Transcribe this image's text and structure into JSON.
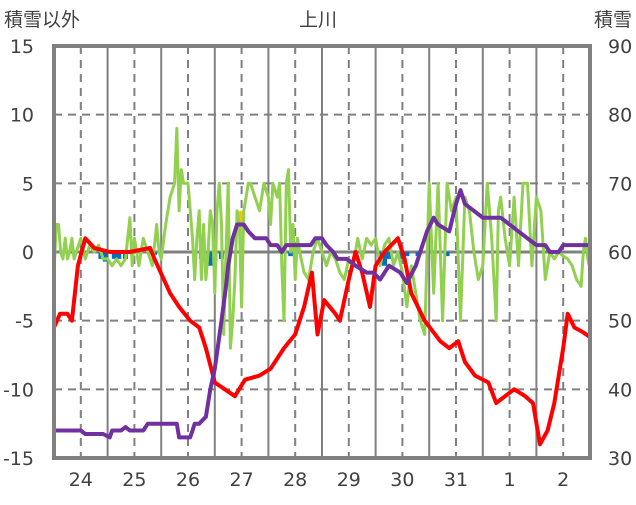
{
  "chart_data": {
    "type": "line",
    "title": "上川",
    "ylabel_left": "積雪以外",
    "ylabel_right": "積雪",
    "ylim_left": [
      -15,
      15
    ],
    "ylim_right": [
      30,
      90
    ],
    "yticks_left": [
      "15",
      "10",
      "5",
      "0",
      "-5",
      "-10",
      "-15"
    ],
    "yticks_right": [
      "90",
      "80",
      "70",
      "60",
      "50",
      "40",
      "30"
    ],
    "xlim_hours": [
      0,
      240
    ],
    "x_tick_labels": [
      "24",
      "25",
      "26",
      "27",
      "28",
      "29",
      "30",
      "31",
      "1",
      "2"
    ],
    "grid": true,
    "colors": {
      "temperature": "#ff0000",
      "snow_depth": "#7030a0",
      "green_series": "#92d050",
      "blue_bars": "#0070c0",
      "orange_bars": "#ffc000",
      "frame": "#808080"
    },
    "series": [
      {
        "name": "green_series",
        "axis": "left",
        "points": [
          [
            0,
            -1.5
          ],
          [
            1,
            2
          ],
          [
            2,
            2
          ],
          [
            3,
            0
          ],
          [
            4,
            -0.5
          ],
          [
            5,
            1
          ],
          [
            6,
            -0.5
          ],
          [
            7,
            0
          ],
          [
            8,
            1
          ],
          [
            9,
            -0.5
          ],
          [
            10,
            0
          ],
          [
            12,
            1
          ],
          [
            14,
            -0.5
          ],
          [
            16,
            0.5
          ],
          [
            18,
            0
          ],
          [
            20,
            0.5
          ],
          [
            22,
            -0.5
          ],
          [
            24,
            -0.5
          ],
          [
            26,
            -1
          ],
          [
            28,
            -0.5
          ],
          [
            30,
            -1
          ],
          [
            32,
            -0.5
          ],
          [
            34,
            2.5
          ],
          [
            35,
            -1
          ],
          [
            36,
            1
          ],
          [
            38,
            -1
          ],
          [
            40,
            1
          ],
          [
            42,
            0
          ],
          [
            44,
            -1
          ],
          [
            46,
            2
          ],
          [
            47,
            0
          ],
          [
            48,
            -0.5
          ],
          [
            50,
            2
          ],
          [
            52,
            4
          ],
          [
            54,
            5
          ],
          [
            55,
            9
          ],
          [
            56,
            3
          ],
          [
            57,
            6
          ],
          [
            58,
            5
          ],
          [
            60,
            5
          ],
          [
            62,
            1
          ],
          [
            63,
            -2
          ],
          [
            64,
            1
          ],
          [
            65,
            3
          ],
          [
            66,
            -2
          ],
          [
            67,
            2
          ],
          [
            68,
            -2
          ],
          [
            69,
            0
          ],
          [
            70,
            3
          ],
          [
            71,
            2
          ],
          [
            72,
            -3
          ],
          [
            73,
            3
          ],
          [
            74,
            5
          ],
          [
            75,
            2
          ],
          [
            76,
            -6
          ],
          [
            77,
            0
          ],
          [
            78,
            5
          ],
          [
            79,
            -7
          ],
          [
            80,
            -5
          ],
          [
            81,
            -2
          ],
          [
            82,
            3
          ],
          [
            83,
            2
          ],
          [
            84,
            -4
          ],
          [
            85,
            3
          ],
          [
            86,
            4
          ],
          [
            87,
            5
          ],
          [
            88,
            5
          ],
          [
            90,
            4
          ],
          [
            92,
            3
          ],
          [
            93,
            4
          ],
          [
            94,
            5
          ],
          [
            96,
            4
          ],
          [
            97,
            2
          ],
          [
            98,
            5
          ],
          [
            100,
            4
          ],
          [
            101,
            5
          ],
          [
            102,
            -1
          ],
          [
            103,
            -5
          ],
          [
            104,
            5
          ],
          [
            105,
            6
          ],
          [
            106,
            0
          ],
          [
            107,
            2
          ],
          [
            108,
            -2
          ],
          [
            109,
            1
          ],
          [
            110,
            0
          ],
          [
            112,
            -1.5
          ],
          [
            114,
            -2
          ],
          [
            116,
            0
          ],
          [
            118,
            1
          ],
          [
            120,
            0
          ],
          [
            122,
            -1
          ],
          [
            124,
            0
          ],
          [
            126,
            -0.5
          ],
          [
            128,
            -1.5
          ],
          [
            130,
            -2
          ],
          [
            132,
            -0.5
          ],
          [
            134,
            -1
          ],
          [
            136,
            1
          ],
          [
            138,
            -0.5
          ],
          [
            140,
            1
          ],
          [
            142,
            0.5
          ],
          [
            144,
            1
          ],
          [
            146,
            -1
          ],
          [
            148,
            0.5
          ],
          [
            150,
            1
          ],
          [
            152,
            -1
          ],
          [
            154,
            0
          ],
          [
            156,
            -1.5
          ],
          [
            158,
            -4
          ],
          [
            160,
            -1
          ],
          [
            162,
            -3
          ],
          [
            164,
            -5
          ],
          [
            166,
            -6
          ],
          [
            168,
            5
          ],
          [
            170,
            -3
          ],
          [
            172,
            5
          ],
          [
            174,
            -5
          ],
          [
            176,
            5
          ],
          [
            178,
            3
          ],
          [
            180,
            4
          ],
          [
            182,
            -5
          ],
          [
            184,
            4
          ],
          [
            186,
            3
          ],
          [
            188,
            0
          ],
          [
            190,
            -2
          ],
          [
            192,
            -1
          ],
          [
            194,
            5
          ],
          [
            196,
            1
          ],
          [
            198,
            -5
          ],
          [
            199,
            3
          ],
          [
            200,
            4
          ],
          [
            202,
            1
          ],
          [
            204,
            -1
          ],
          [
            206,
            4
          ],
          [
            208,
            -1
          ],
          [
            210,
            5
          ],
          [
            212,
            5
          ],
          [
            214,
            -1
          ],
          [
            216,
            4
          ],
          [
            218,
            3
          ],
          [
            220,
            -2
          ],
          [
            222,
            0
          ],
          [
            224,
            -0.5
          ],
          [
            226,
            0
          ],
          [
            228,
            -0.3
          ],
          [
            230,
            -0.5
          ],
          [
            232,
            -1
          ],
          [
            234,
            -2
          ],
          [
            236,
            -2.5
          ],
          [
            237,
            0
          ],
          [
            238,
            1
          ],
          [
            239,
            -0.5
          ],
          [
            240,
            -1.2
          ]
        ]
      },
      {
        "name": "temperature",
        "axis": "left",
        "points": [
          [
            0,
            -5.5
          ],
          [
            2.7,
            -4.5
          ],
          [
            6,
            -4.5
          ],
          [
            8,
            -5
          ],
          [
            10.7,
            -1
          ],
          [
            14,
            1
          ],
          [
            18,
            0.3
          ],
          [
            25,
            0
          ],
          [
            34,
            0
          ],
          [
            43,
            0.3
          ],
          [
            45,
            -0.5
          ],
          [
            52,
            -3
          ],
          [
            56,
            -4
          ],
          [
            61,
            -5
          ],
          [
            65,
            -5.5
          ],
          [
            68,
            -7
          ],
          [
            72,
            -9.5
          ],
          [
            76.5,
            -10
          ],
          [
            81,
            -10.5
          ],
          [
            85.5,
            -9.3
          ],
          [
            92,
            -9
          ],
          [
            97,
            -8.5
          ],
          [
            103,
            -7
          ],
          [
            108,
            -6
          ],
          [
            112,
            -4
          ],
          [
            115.5,
            -1.5
          ],
          [
            118,
            -6
          ],
          [
            121,
            -3.5
          ],
          [
            126,
            -4.5
          ],
          [
            128,
            -5
          ],
          [
            132,
            -2
          ],
          [
            135,
            0
          ],
          [
            138,
            -1.5
          ],
          [
            141.5,
            -4
          ],
          [
            144,
            -1
          ],
          [
            148,
            0
          ],
          [
            154,
            1
          ],
          [
            157,
            -0.5
          ],
          [
            160,
            -3
          ],
          [
            166,
            -5
          ],
          [
            173,
            -6.5
          ],
          [
            177,
            -7
          ],
          [
            181,
            -6.5
          ],
          [
            184,
            -8
          ],
          [
            188.5,
            -9
          ],
          [
            194.5,
            -9.5
          ],
          [
            198,
            -11
          ],
          [
            202,
            -10.5
          ],
          [
            206,
            -10
          ],
          [
            211,
            -10.5
          ],
          [
            214.5,
            -11
          ],
          [
            217.6,
            -14
          ],
          [
            221,
            -13
          ],
          [
            224,
            -11
          ],
          [
            228,
            -7
          ],
          [
            230,
            -4.5
          ],
          [
            233,
            -5.5
          ],
          [
            236.5,
            -5.8
          ],
          [
            240,
            -6.2
          ]
        ]
      },
      {
        "name": "snow_depth",
        "axis": "right",
        "points": [
          [
            0,
            34
          ],
          [
            12,
            34
          ],
          [
            14,
            33.5
          ],
          [
            22,
            33.5
          ],
          [
            25,
            33
          ],
          [
            26,
            34
          ],
          [
            30,
            34
          ],
          [
            32,
            34.5
          ],
          [
            34,
            34
          ],
          [
            40,
            34
          ],
          [
            42,
            35
          ],
          [
            55,
            35
          ],
          [
            56,
            33
          ],
          [
            61,
            33
          ],
          [
            62,
            34
          ],
          [
            63,
            35
          ],
          [
            65,
            35
          ],
          [
            68,
            36
          ],
          [
            70,
            40
          ],
          [
            72,
            43
          ],
          [
            75,
            50
          ],
          [
            77,
            55
          ],
          [
            78,
            58
          ],
          [
            80,
            62
          ],
          [
            82,
            64
          ],
          [
            85,
            64
          ],
          [
            87,
            63
          ],
          [
            90,
            62
          ],
          [
            95,
            62
          ],
          [
            97,
            61
          ],
          [
            100,
            61
          ],
          [
            102,
            60
          ],
          [
            104,
            61
          ],
          [
            108,
            61
          ],
          [
            115,
            61
          ],
          [
            117,
            62
          ],
          [
            120,
            62
          ],
          [
            122,
            61
          ],
          [
            125,
            60
          ],
          [
            127,
            59
          ],
          [
            131,
            59
          ],
          [
            135,
            58
          ],
          [
            140,
            57
          ],
          [
            143,
            57
          ],
          [
            146,
            56
          ],
          [
            150,
            58
          ],
          [
            155,
            57
          ],
          [
            158,
            55.5
          ],
          [
            162,
            58
          ],
          [
            165,
            61
          ],
          [
            167,
            63
          ],
          [
            170,
            65
          ],
          [
            172,
            64
          ],
          [
            177,
            63
          ],
          [
            180,
            67
          ],
          [
            182,
            69
          ],
          [
            184,
            67
          ],
          [
            188,
            66
          ],
          [
            192,
            65
          ],
          [
            200,
            65
          ],
          [
            204,
            64
          ],
          [
            208,
            63
          ],
          [
            212,
            62
          ],
          [
            216,
            61
          ],
          [
            220,
            61
          ],
          [
            222,
            60
          ],
          [
            226,
            60
          ],
          [
            228,
            61
          ],
          [
            240,
            61
          ]
        ]
      }
    ],
    "bars": [
      {
        "name": "blue_bars",
        "axis": "left",
        "points": [
          [
            21,
            -0.5
          ],
          [
            23,
            -0.7
          ],
          [
            27,
            -0.5
          ],
          [
            29,
            -0.5
          ],
          [
            32,
            -0.5
          ],
          [
            45,
            -0.2
          ],
          [
            66,
            -0.5
          ],
          [
            68,
            -0.7
          ],
          [
            70,
            -1
          ],
          [
            72,
            -0.7
          ],
          [
            75,
            -0.5
          ],
          [
            106,
            -0.3
          ],
          [
            146,
            -0.3
          ],
          [
            148,
            -1
          ],
          [
            150,
            -0.5
          ],
          [
            155,
            -0.5
          ],
          [
            158,
            -0.3
          ],
          [
            163,
            -0.3
          ],
          [
            176,
            -0.3
          ]
        ]
      },
      {
        "name": "orange_bars",
        "axis": "left",
        "points": [
          [
            84,
            3
          ]
        ]
      }
    ]
  }
}
